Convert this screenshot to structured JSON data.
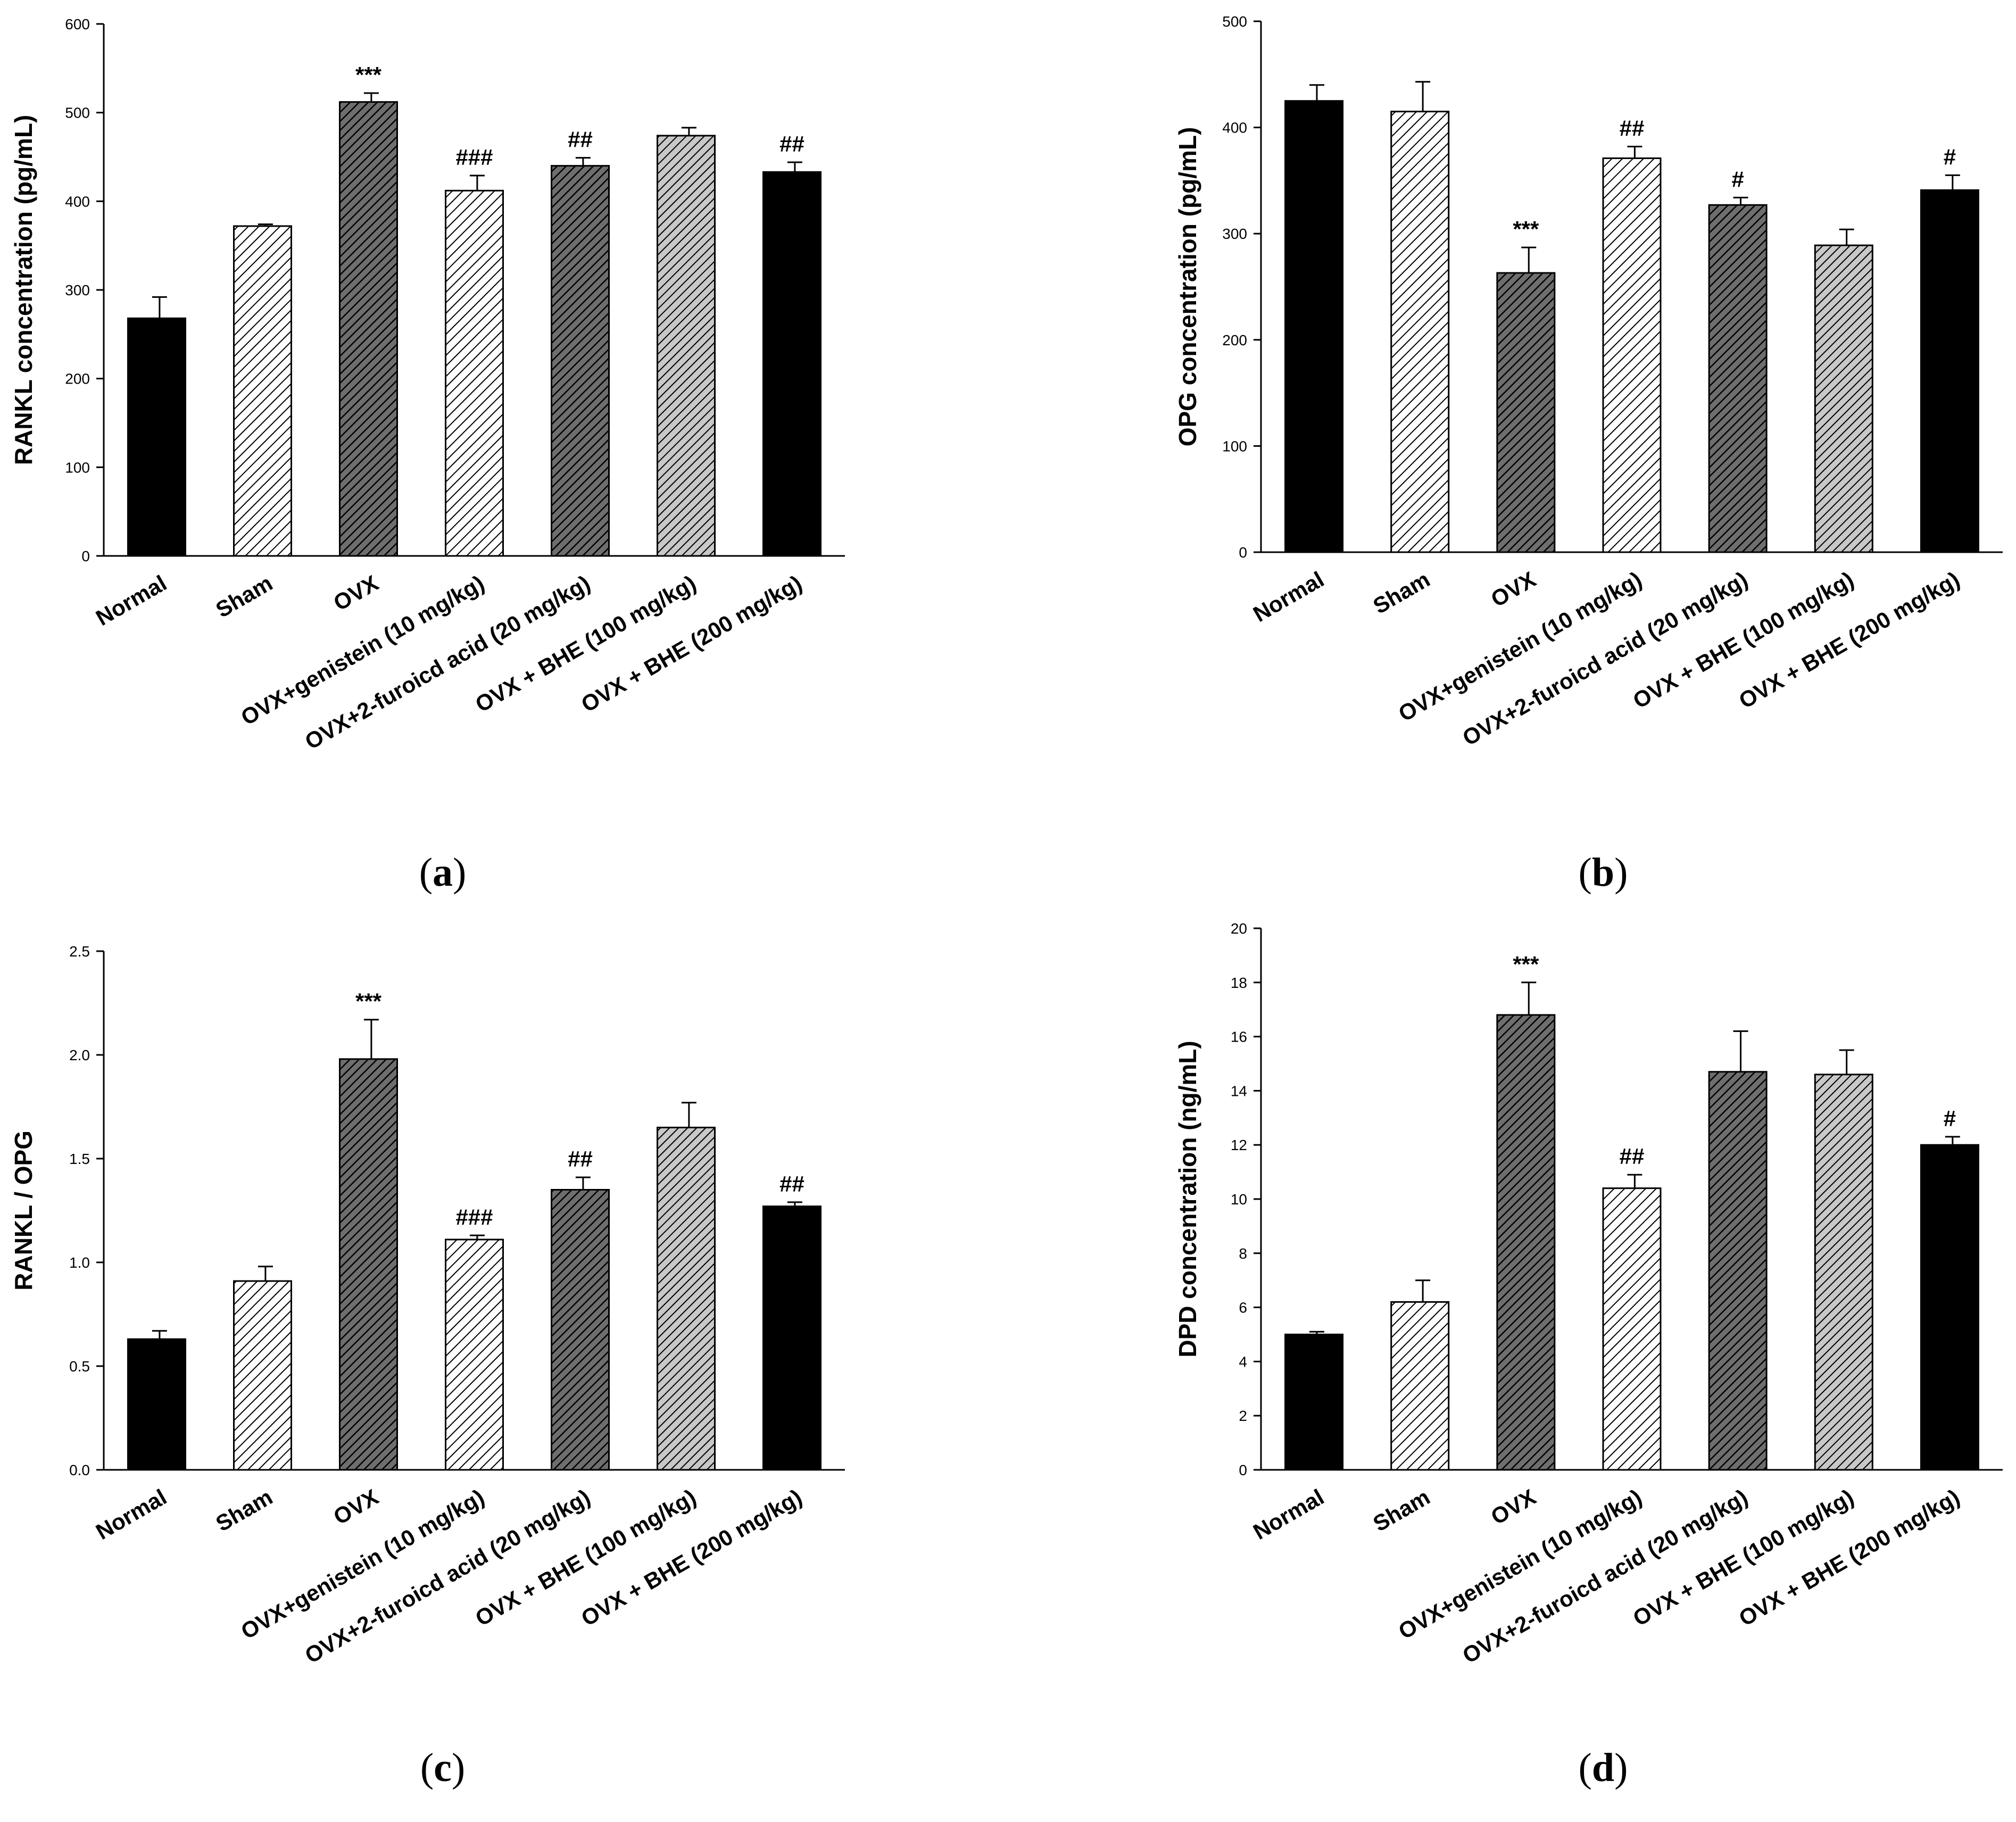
{
  "chart_data": [
    {
      "type": "bar",
      "panel": "a",
      "ylabel": "RANKL concentration (pg/mL)",
      "ylim": [
        0,
        600
      ],
      "yticks": [
        0,
        100,
        200,
        300,
        400,
        500,
        600
      ],
      "categories": [
        "Normal",
        "Sham",
        "OVX",
        "OVX+genistein (10 mg/kg)",
        "OVX+2-furoicd acid (20 mg/kg)",
        "OVX + BHE (100 mg/kg)",
        "OVX + BHE (200 mg/kg)"
      ],
      "values": [
        268,
        372,
        512,
        412,
        440,
        474,
        433
      ],
      "errors": [
        24,
        2,
        10,
        17,
        9,
        9,
        11
      ],
      "significance": [
        "",
        "",
        "***",
        "###",
        "##",
        "",
        "##"
      ],
      "fills": [
        "solid-black",
        "light-hatch",
        "dark-hatch",
        "light-hatch",
        "dark-hatch",
        "medium-hatch",
        "solid-black"
      ]
    },
    {
      "type": "bar",
      "panel": "b",
      "ylabel": "OPG concentration (pg/mL)",
      "ylim": [
        0,
        500
      ],
      "yticks": [
        0,
        100,
        200,
        300,
        400,
        500
      ],
      "categories": [
        "Normal",
        "Sham",
        "OVX",
        "OVX+genistein (10 mg/kg)",
        "OVX+2-furoicd acid (20 mg/kg)",
        "OVX + BHE (100 mg/kg)",
        "OVX + BHE (200 mg/kg)"
      ],
      "values": [
        425,
        415,
        263,
        371,
        327,
        289,
        341
      ],
      "errors": [
        15,
        28,
        24,
        11,
        7,
        15,
        14
      ],
      "significance": [
        "",
        "",
        "***",
        "##",
        "#",
        "",
        "#"
      ],
      "fills": [
        "solid-black",
        "light-hatch",
        "dark-hatch",
        "light-hatch",
        "dark-hatch",
        "medium-hatch",
        "solid-black"
      ]
    },
    {
      "type": "bar",
      "panel": "c",
      "ylabel": "RANKL / OPG",
      "ylim": [
        0,
        2.5
      ],
      "yticks": [
        "0.0",
        "0.5",
        "1.0",
        "1.5",
        "2.0",
        "2.5"
      ],
      "categories": [
        "Normal",
        "Sham",
        "OVX",
        "OVX+genistein (10 mg/kg)",
        "OVX+2-furoicd acid (20 mg/kg)",
        "OVX + BHE (100 mg/kg)",
        "OVX + BHE (200 mg/kg)"
      ],
      "values": [
        0.63,
        0.91,
        1.98,
        1.11,
        1.35,
        1.65,
        1.27
      ],
      "errors": [
        0.04,
        0.07,
        0.19,
        0.02,
        0.06,
        0.12,
        0.02
      ],
      "significance": [
        "",
        "",
        "***",
        "###",
        "##",
        "",
        "##"
      ],
      "fills": [
        "solid-black",
        "light-hatch",
        "dark-hatch",
        "light-hatch",
        "dark-hatch",
        "medium-hatch",
        "solid-black"
      ]
    },
    {
      "type": "bar",
      "panel": "d",
      "ylabel": "DPD concentration (ng/mL)",
      "ylim": [
        0,
        20
      ],
      "yticks": [
        0,
        2,
        4,
        6,
        8,
        10,
        12,
        14,
        16,
        18,
        20
      ],
      "categories": [
        "Normal",
        "Sham",
        "OVX",
        "OVX+genistein (10 mg/kg)",
        "OVX+2-furoicd acid (20 mg/kg)",
        "OVX + BHE (100 mg/kg)",
        "OVX + BHE (200 mg/kg)"
      ],
      "values": [
        5.0,
        6.2,
        16.8,
        10.4,
        14.7,
        14.6,
        12.0
      ],
      "errors": [
        0.1,
        0.8,
        1.2,
        0.5,
        1.5,
        0.9,
        0.3
      ],
      "significance": [
        "",
        "",
        "***",
        "##",
        "",
        "",
        "#"
      ],
      "fills": [
        "solid-black",
        "light-hatch",
        "dark-hatch",
        "light-hatch",
        "dark-hatch",
        "medium-hatch",
        "solid-black"
      ]
    }
  ],
  "panel_labels": [
    {
      "open": "(",
      "letter": "a",
      "close": ")"
    },
    {
      "open": "(",
      "letter": "b",
      "close": ")"
    },
    {
      "open": "(",
      "letter": "c",
      "close": ")"
    },
    {
      "open": "(",
      "letter": "d",
      "close": ")"
    }
  ]
}
